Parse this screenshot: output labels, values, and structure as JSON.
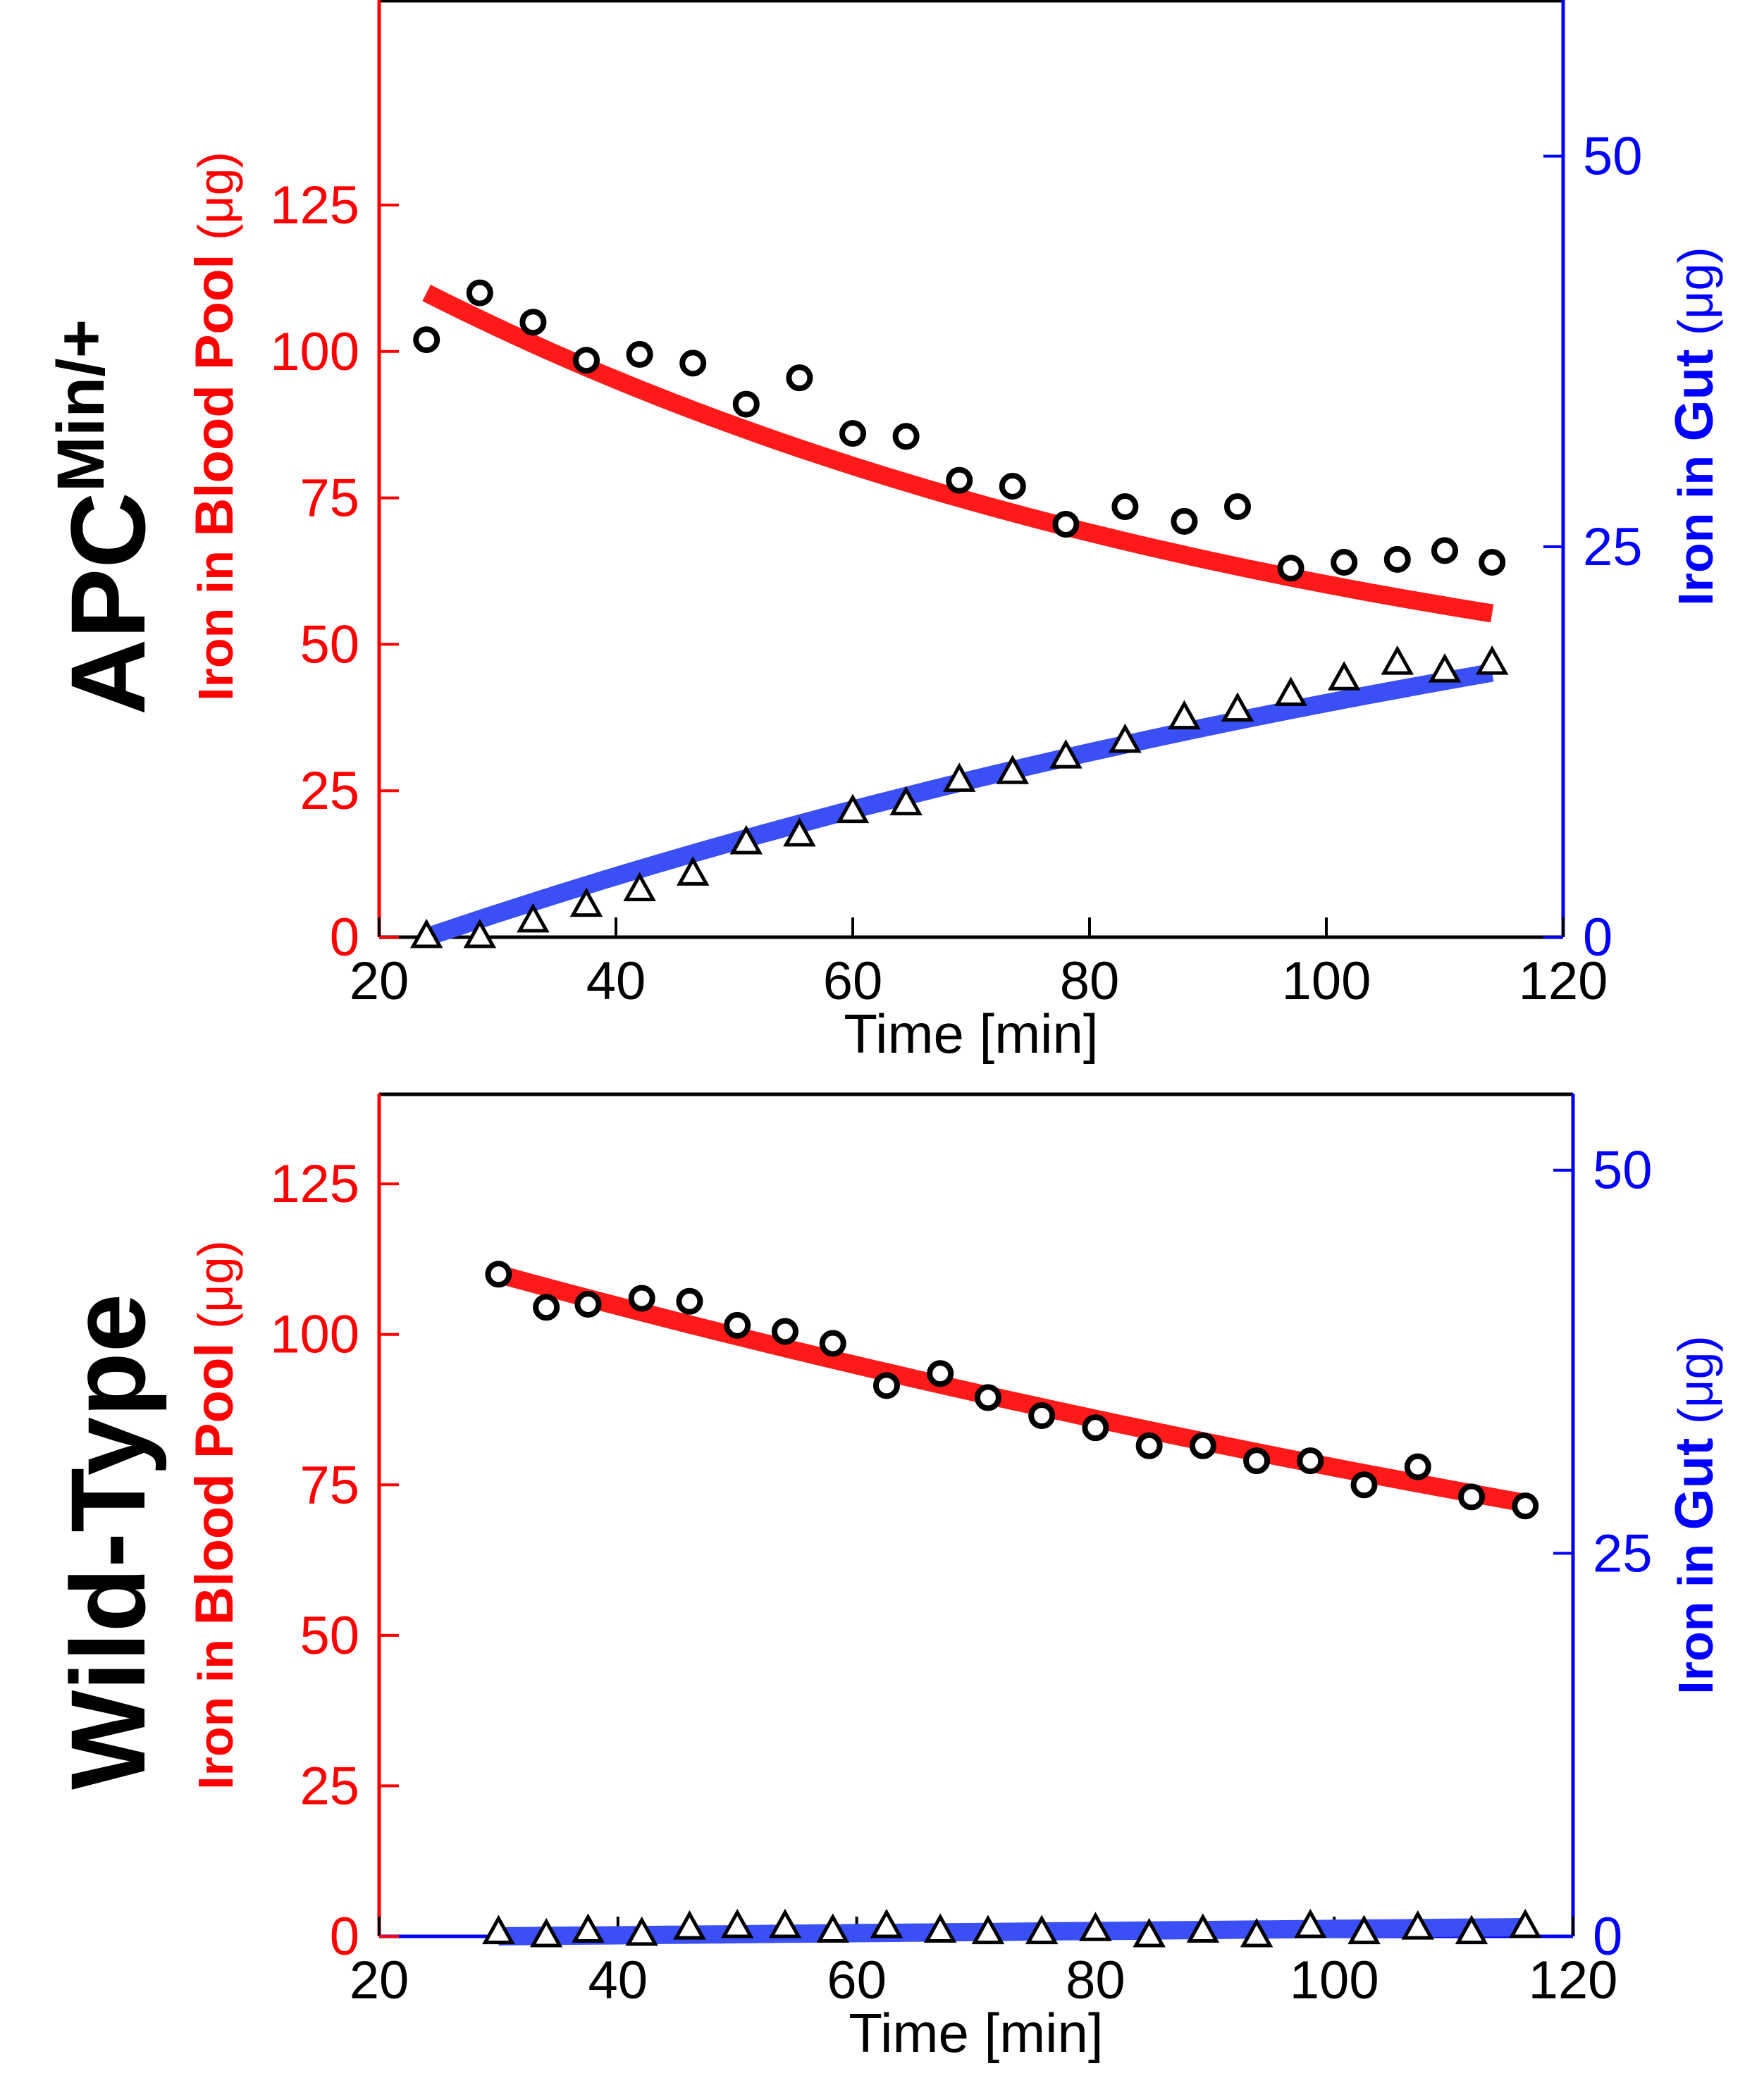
{
  "figure": {
    "row_titles": [
      {
        "text": "APC",
        "superscript": "Min/+"
      },
      {
        "text": "Wild-Type",
        "superscript": ""
      }
    ]
  },
  "colors": {
    "blood": "#ff0000",
    "gut": "#0000ff",
    "blood_fit": "#ff1a1a",
    "gut_fit": "#3a4ff5",
    "frame": "#000000"
  },
  "chart_data": [
    {
      "type": "scatter",
      "panel": "APCMin/+",
      "xlabel": "Time [min]",
      "ylabel_left": {
        "prefix": "Iron in ",
        "bold": "Blood Pool",
        "unit": " (μg)"
      },
      "ylabel_right": {
        "prefix": "Iron in ",
        "bold": "Gut",
        "unit": " (μg)"
      },
      "xlim": [
        20,
        120
      ],
      "ylim_left": [
        0,
        160
      ],
      "ylim_right": [
        0,
        60
      ],
      "xticks": [
        20,
        40,
        60,
        80,
        100,
        120
      ],
      "yticks_left": [
        0,
        25,
        50,
        75,
        100,
        125
      ],
      "yticks_right": [
        0,
        25,
        50
      ],
      "series": [
        {
          "name": "Blood Pool (data)",
          "axis": "left",
          "marker": "circle",
          "x": [
            24,
            28.5,
            33,
            37.5,
            42,
            46.5,
            51,
            55.5,
            60,
            64.5,
            69,
            73.5,
            78,
            83,
            88,
            92.5,
            97,
            101.5,
            106,
            110,
            114
          ],
          "y": [
            102,
            110,
            105,
            98.5,
            99.5,
            98,
            91,
            95.5,
            86,
            85.5,
            78,
            77,
            70.5,
            73.5,
            71,
            73.5,
            63,
            64,
            64.5,
            66,
            64
          ]
        },
        {
          "name": "Blood Pool (fit)",
          "axis": "left",
          "marker": "line",
          "x": [
            24,
            114
          ],
          "y0": 110,
          "y_inf": 30,
          "k": 0.0128
        },
        {
          "name": "Gut (data)",
          "axis": "right",
          "marker": "triangle",
          "x": [
            24,
            28.5,
            33,
            37.5,
            42,
            46.5,
            51,
            55.5,
            60,
            64.5,
            69,
            73.5,
            78,
            83,
            88,
            92.5,
            97,
            101.5,
            106,
            110,
            114
          ],
          "y": [
            0,
            0,
            1,
            2,
            3,
            4,
            6,
            6.5,
            8,
            8.5,
            10,
            10.5,
            11.5,
            12.5,
            14,
            14.5,
            15.5,
            16.5,
            17.5,
            17,
            17.5
          ]
        },
        {
          "name": "Gut (fit)",
          "axis": "right",
          "marker": "line",
          "x": [
            24,
            114
          ],
          "y_max": 34.5,
          "k": 0.0075
        }
      ]
    },
    {
      "type": "scatter",
      "panel": "Wild-Type",
      "xlabel": "Time [min]",
      "ylabel_left": {
        "prefix": "Iron in ",
        "bold": "Blood Pool",
        "unit": " (μg)"
      },
      "ylabel_right": {
        "prefix": "Iron in ",
        "bold": "Gut",
        "unit": " (μg)"
      },
      "xlim": [
        20,
        120
      ],
      "ylim_left": [
        0,
        140
      ],
      "ylim_right": [
        0,
        55
      ],
      "xticks": [
        20,
        40,
        60,
        80,
        100,
        120
      ],
      "yticks_left": [
        0,
        25,
        50,
        75,
        100,
        125
      ],
      "yticks_right": [
        0,
        25,
        50
      ],
      "series": [
        {
          "name": "Blood Pool (data)",
          "axis": "left",
          "marker": "circle",
          "x": [
            30,
            34,
            37.5,
            42,
            46,
            50,
            54,
            58,
            62.5,
            67,
            71,
            75.5,
            80,
            84.5,
            89,
            93.5,
            98,
            102.5,
            107,
            111.5,
            116
          ],
          "y": [
            110,
            104.5,
            105,
            106,
            105.5,
            101.5,
            100.5,
            98.5,
            91.5,
            93.5,
            89.5,
            86.5,
            84.5,
            81.5,
            81.5,
            79,
            79,
            75,
            78,
            73,
            71.5
          ]
        },
        {
          "name": "Blood Pool (fit)",
          "axis": "left",
          "marker": "line",
          "x": [
            30,
            116
          ],
          "y0": 110,
          "y_inf": 0,
          "k": 0.00493
        },
        {
          "name": "Gut (data)",
          "axis": "right",
          "marker": "triangle",
          "x": [
            30,
            34,
            37.5,
            42,
            46,
            50,
            54,
            58,
            62.5,
            67,
            71,
            75.5,
            80,
            84.5,
            89,
            93.5,
            98,
            102.5,
            107,
            111.5,
            116
          ],
          "y": [
            0.2,
            0,
            0.3,
            0.1,
            0.5,
            0.6,
            0.6,
            0.3,
            0.6,
            0.3,
            0.2,
            0.2,
            0.4,
            0,
            0.3,
            0,
            0.6,
            0.2,
            0.5,
            0.2,
            0.6
          ]
        },
        {
          "name": "Gut (fit)",
          "axis": "right",
          "marker": "line",
          "x": [
            30,
            116
          ],
          "y_max": 0.6
        }
      ]
    }
  ]
}
